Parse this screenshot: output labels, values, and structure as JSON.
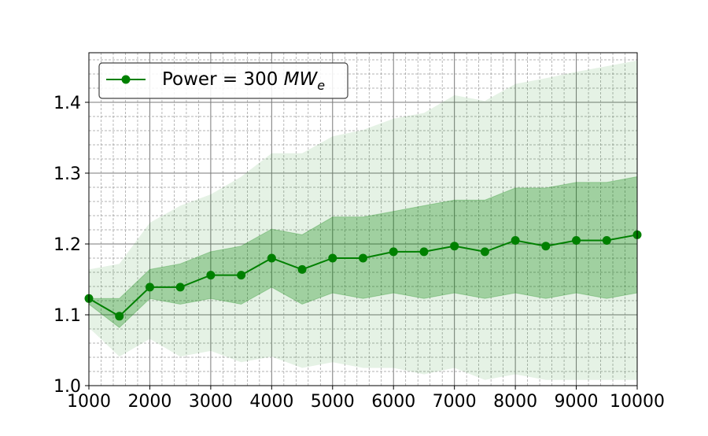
{
  "chart_data": {
    "type": "line",
    "title": "",
    "xlabel": "",
    "ylabel": "",
    "xlim": [
      1000,
      10000
    ],
    "ylim": [
      1.0,
      1.47
    ],
    "grid": true,
    "minor_grid": true,
    "legend_position": "top-left",
    "x_ticks": [
      "1000",
      "2000",
      "3000",
      "4000",
      "5000",
      "6000",
      "7000",
      "8000",
      "9000",
      "10000"
    ],
    "y_ticks": [
      "1.0",
      "1.1",
      "1.2",
      "1.3",
      "1.4"
    ],
    "x_tick_values": [
      1000,
      2000,
      3000,
      4000,
      5000,
      6000,
      7000,
      8000,
      9000,
      10000
    ],
    "y_tick_values": [
      1.0,
      1.1,
      1.2,
      1.3,
      1.4
    ],
    "x": [
      1000,
      1500,
      2000,
      2500,
      3000,
      3500,
      4000,
      4500,
      5000,
      5500,
      6000,
      6500,
      7000,
      7500,
      8000,
      8500,
      9000,
      9500,
      10000
    ],
    "series": [
      {
        "name": "Power = 300 MW_e",
        "legend_label": {
          "prefix": "Power = 300 ",
          "main": "MW",
          "subscript": "e"
        },
        "color": "#008000",
        "values": [
          1.123,
          1.098,
          1.139,
          1.139,
          1.156,
          1.156,
          1.18,
          1.164,
          1.18,
          1.18,
          1.189,
          1.189,
          1.197,
          1.189,
          1.205,
          1.197,
          1.205,
          1.205,
          1.213
        ],
        "band_inner": {
          "lower": [
            1.115,
            1.082,
            1.123,
            1.115,
            1.123,
            1.115,
            1.139,
            1.115,
            1.131,
            1.123,
            1.131,
            1.123,
            1.131,
            1.123,
            1.131,
            1.123,
            1.131,
            1.123,
            1.131
          ],
          "upper": [
            1.123,
            1.123,
            1.164,
            1.172,
            1.189,
            1.197,
            1.221,
            1.213,
            1.238,
            1.238,
            1.246,
            1.254,
            1.262,
            1.262,
            1.279,
            1.279,
            1.287,
            1.287,
            1.295
          ]
        },
        "band_outer": {
          "lower": [
            1.082,
            1.041,
            1.066,
            1.041,
            1.049,
            1.033,
            1.041,
            1.025,
            1.033,
            1.025,
            1.025,
            1.016,
            1.025,
            1.008,
            1.016,
            1.008,
            1.008,
            1.008,
            1.008
          ],
          "upper": [
            1.164,
            1.172,
            1.23,
            1.254,
            1.27,
            1.295,
            1.328,
            1.328,
            1.352,
            1.361,
            1.377,
            1.385,
            1.41,
            1.402,
            1.426,
            1.434,
            1.443,
            1.451,
            1.459
          ]
        }
      }
    ]
  }
}
